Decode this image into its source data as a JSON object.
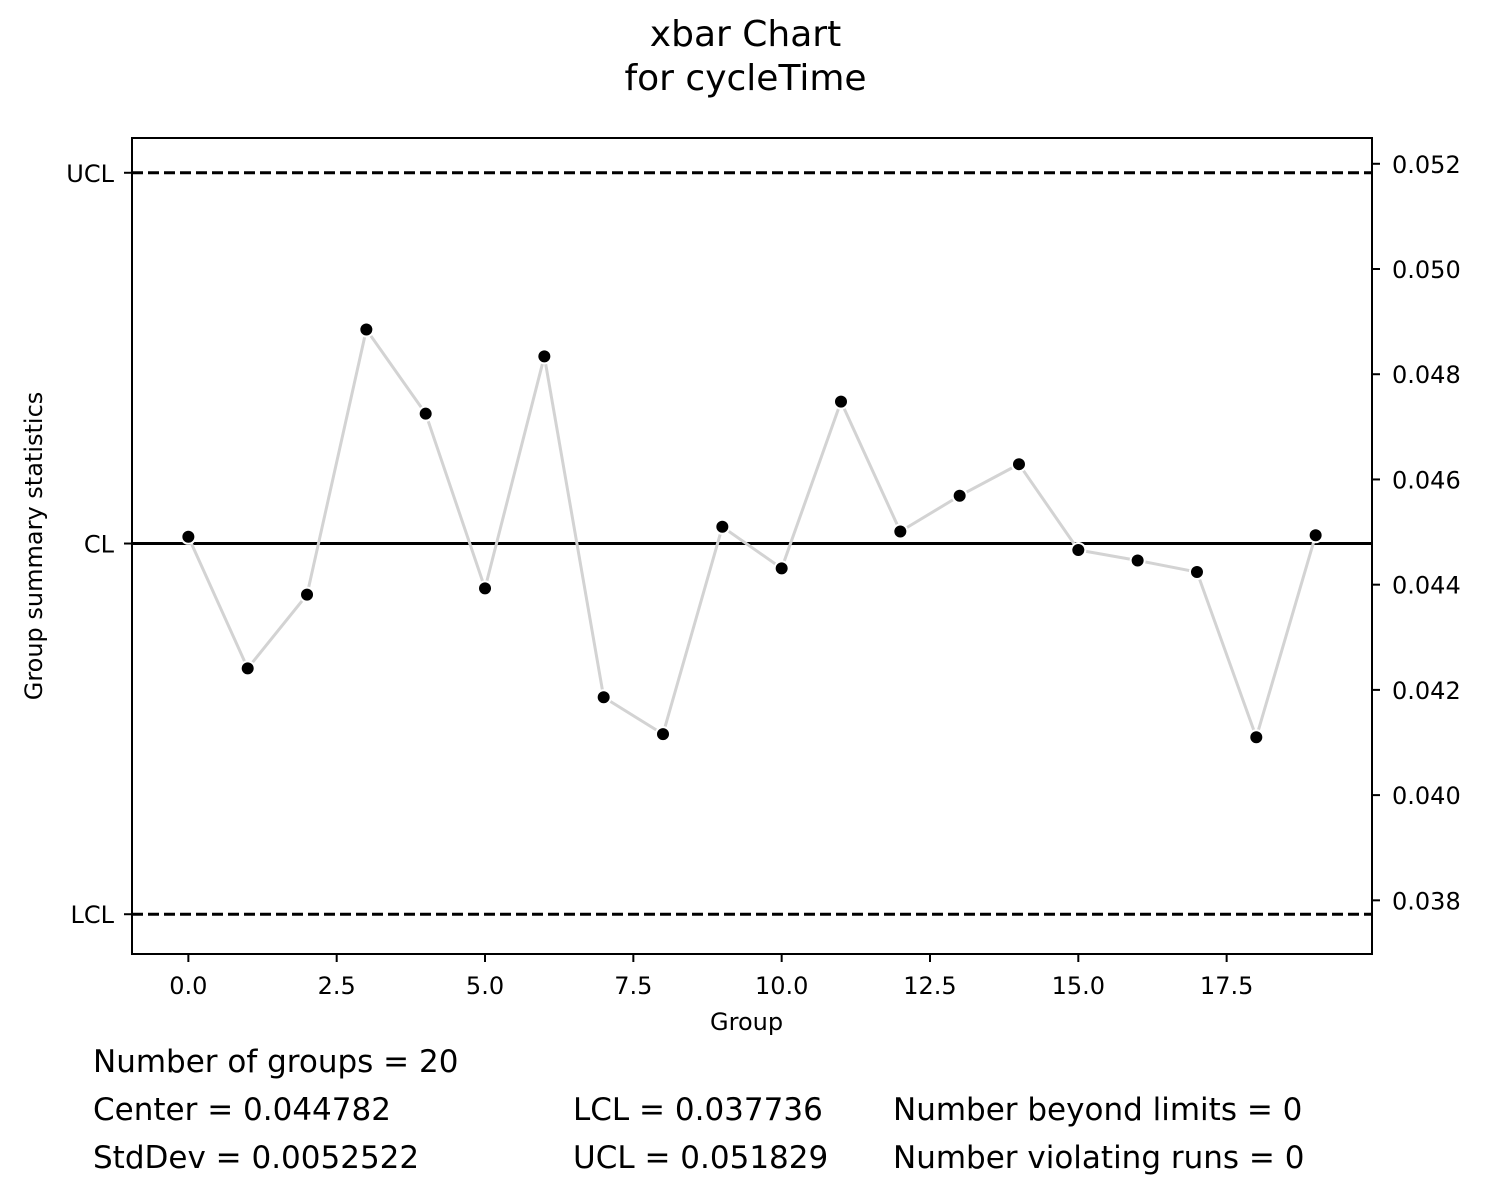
{
  "title": {
    "line1": "xbar Chart",
    "line2": "for cycleTime"
  },
  "chart_data": {
    "type": "line",
    "xlabel": "Group",
    "ylabel": "Group summary statistics",
    "xlim": [
      -0.95,
      19.95
    ],
    "ylim": [
      0.03698,
      0.05249
    ],
    "x_ticks": [
      "0.0",
      "2.5",
      "5.0",
      "7.5",
      "10.0",
      "12.5",
      "15.0",
      "17.5"
    ],
    "x_tick_values": [
      0,
      2.5,
      5,
      7.5,
      10,
      12.5,
      15,
      17.5
    ],
    "right_y_ticks": [
      "0.038",
      "0.040",
      "0.042",
      "0.044",
      "0.046",
      "0.048",
      "0.050",
      "0.052"
    ],
    "right_y_tick_values": [
      0.038,
      0.04,
      0.042,
      0.044,
      0.046,
      0.048,
      0.05,
      0.052
    ],
    "left_y_ticks": [
      "LCL",
      "CL",
      "UCL"
    ],
    "left_y_tick_values": [
      0.037736,
      0.044782,
      0.051829
    ],
    "control_limits": {
      "LCL": 0.037736,
      "CL": 0.044782,
      "UCL": 0.051829
    },
    "series": [
      {
        "x": [
          0,
          1,
          2,
          3,
          4,
          5,
          6,
          7,
          8,
          9,
          10,
          11,
          12,
          13,
          14,
          15,
          16,
          17,
          18,
          19
        ],
        "values": [
          0.04491,
          0.04241,
          0.04381,
          0.04885,
          0.04725,
          0.04393,
          0.04834,
          0.04186,
          0.04116,
          0.0451,
          0.04431,
          0.04748,
          0.04501,
          0.04569,
          0.04629,
          0.04466,
          0.04446,
          0.04424,
          0.0411,
          0.04494
        ]
      }
    ],
    "colors": {
      "line": "#d3d3d3",
      "points": "#000000",
      "limits": "#000000"
    },
    "grid": false
  },
  "stats": {
    "groups": "Number of groups = 20",
    "center": "Center = 0.044782",
    "stddev": "StdDev = 0.0052522",
    "lcl": "LCL = 0.037736",
    "ucl": "UCL = 0.051829",
    "beyond": "Number beyond limits = 0",
    "violating": "Number violating runs = 0"
  }
}
